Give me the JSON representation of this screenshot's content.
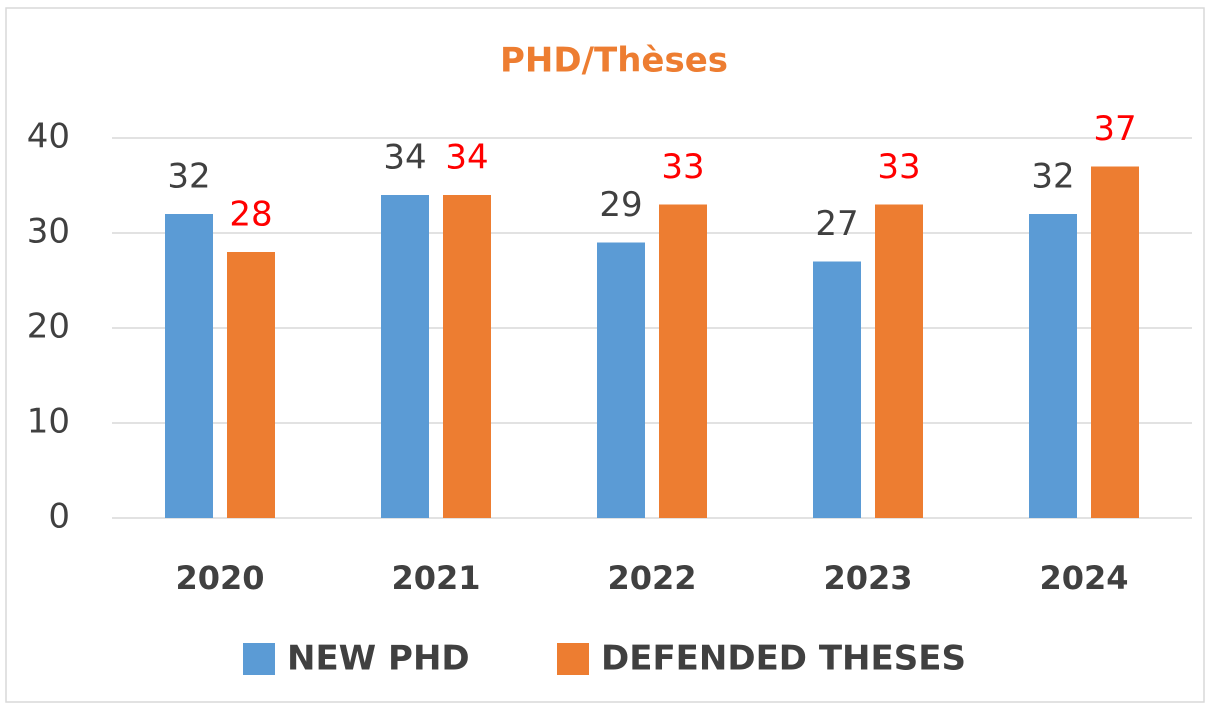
{
  "chart_data": {
    "type": "bar",
    "title": "PHD/Thèses",
    "categories": [
      "2020",
      "2021",
      "2022",
      "2023",
      "2024"
    ],
    "series": [
      {
        "name": "NEW PHD",
        "color": "#5b9bd5",
        "label_color": "#404040",
        "values": [
          32,
          34,
          29,
          27,
          32
        ]
      },
      {
        "name": "DEFENDED THESES",
        "color": "#ed7d31",
        "label_color": "#ff0000",
        "values": [
          28,
          34,
          33,
          33,
          37
        ]
      }
    ],
    "ylim": [
      0,
      40
    ],
    "yticks": [
      0,
      10,
      20,
      30,
      40
    ],
    "grid": true,
    "legend": "bottom"
  }
}
